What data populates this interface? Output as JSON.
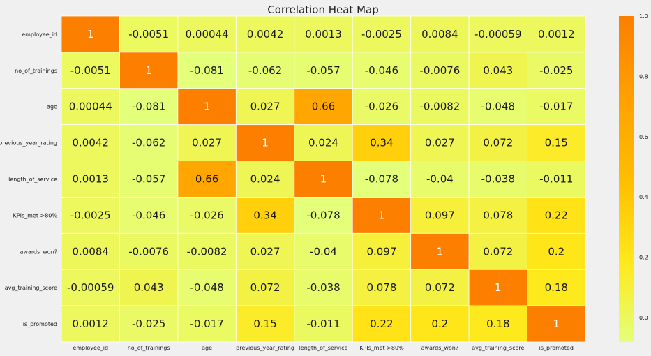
{
  "chart_data": {
    "type": "heatmap",
    "title": "Correlation Heat Map",
    "labels": [
      "employee_id",
      "no_of_trainings",
      "age",
      "previous_year_rating",
      "length_of_service",
      "KPIs_met >80%",
      "awards_won?",
      "avg_training_score",
      "is_promoted"
    ],
    "values": [
      [
        1,
        -0.0051,
        0.00044,
        0.0042,
        0.0013,
        -0.0025,
        0.0084,
        -0.00059,
        0.0012
      ],
      [
        -0.0051,
        1,
        -0.081,
        -0.062,
        -0.057,
        -0.046,
        -0.0076,
        0.043,
        -0.025
      ],
      [
        0.00044,
        -0.081,
        1,
        0.027,
        0.66,
        -0.026,
        -0.0082,
        -0.048,
        -0.017
      ],
      [
        0.0042,
        -0.062,
        0.027,
        1,
        0.024,
        0.34,
        0.027,
        0.072,
        0.15
      ],
      [
        0.0013,
        -0.057,
        0.66,
        0.024,
        1,
        -0.078,
        -0.04,
        -0.038,
        -0.011
      ],
      [
        -0.0025,
        -0.046,
        -0.026,
        0.34,
        -0.078,
        1,
        0.097,
        0.078,
        0.22
      ],
      [
        0.0084,
        -0.0076,
        -0.0082,
        0.027,
        -0.04,
        0.097,
        1,
        0.072,
        0.2
      ],
      [
        -0.00059,
        0.043,
        -0.048,
        0.072,
        -0.038,
        0.078,
        0.072,
        1,
        0.18
      ],
      [
        0.0012,
        -0.025,
        -0.017,
        0.15,
        -0.011,
        0.22,
        0.2,
        0.18,
        1
      ]
    ],
    "colorbar": {
      "range": [
        -0.081,
        1
      ],
      "ticks": [
        0.0,
        0.2,
        0.4,
        0.6,
        0.8,
        1.0
      ],
      "tick_labels": [
        "0.0",
        "0.2",
        "0.4",
        "0.6",
        "0.8",
        "1.0"
      ],
      "cmap": "Wistia",
      "colors": [
        "#e4ff7a",
        "#ffe81a",
        "#ffbd00",
        "#ffa000",
        "#fc7f00"
      ]
    },
    "annotations": true
  }
}
